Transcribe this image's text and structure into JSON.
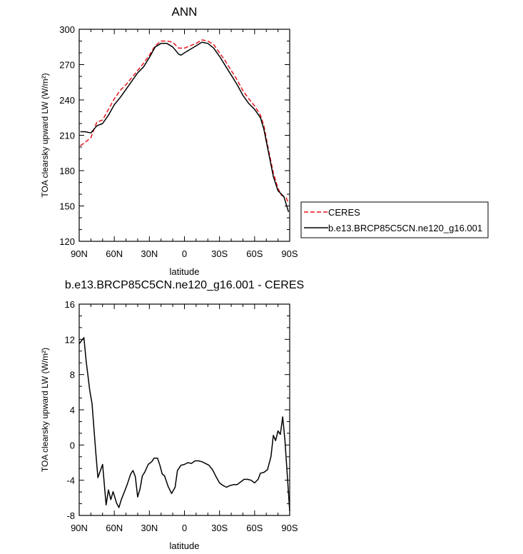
{
  "chart_data": [
    {
      "type": "line",
      "title": "ANN",
      "xlabel": "latitude",
      "ylabel": "TOA clearsky upward LW (W/m²)",
      "xlim": [
        90,
        -90
      ],
      "ylim": [
        120,
        300
      ],
      "x_ticks": [
        {
          "value": 90,
          "label": "90N"
        },
        {
          "value": 60,
          "label": "60N"
        },
        {
          "value": 30,
          "label": "30N"
        },
        {
          "value": 0,
          "label": "0"
        },
        {
          "value": -30,
          "label": "30S"
        },
        {
          "value": -60,
          "label": "60S"
        },
        {
          "value": -90,
          "label": "90S"
        }
      ],
      "y_ticks": [
        120,
        150,
        180,
        210,
        240,
        270,
        300
      ],
      "legend_position": "right",
      "series": [
        {
          "name": "CERES",
          "color": "#e8141d",
          "dash": "dashed",
          "points": [
            [
              89,
              201
            ],
            [
              85,
              204
            ],
            [
              80,
              208
            ],
            [
              75,
              221
            ],
            [
              70,
              223
            ],
            [
              65,
              232
            ],
            [
              60,
              241
            ],
            [
              55,
              248
            ],
            [
              50,
              253
            ],
            [
              45,
              259
            ],
            [
              40,
              265
            ],
            [
              35,
              271
            ],
            [
              30,
              278
            ],
            [
              25,
              286
            ],
            [
              20,
              290
            ],
            [
              15,
              290
            ],
            [
              10,
              289
            ],
            [
              5,
              284
            ],
            [
              0,
              284
            ],
            [
              -5,
              286
            ],
            [
              -10,
              288
            ],
            [
              -15,
              291
            ],
            [
              -20,
              290
            ],
            [
              -25,
              287
            ],
            [
              -30,
              280
            ],
            [
              -35,
              273
            ],
            [
              -40,
              265
            ],
            [
              -45,
              257
            ],
            [
              -50,
              248
            ],
            [
              -55,
              241
            ],
            [
              -60,
              235
            ],
            [
              -65,
              227
            ],
            [
              -68,
              218
            ],
            [
              -72,
              197
            ],
            [
              -76,
              178
            ],
            [
              -80,
              165
            ],
            [
              -83,
              159
            ],
            [
              -87,
              157
            ],
            [
              -89,
              152
            ]
          ]
        },
        {
          "name": "b.e13.BRCP85C5CN.ne120_g16.001",
          "color": "#000000",
          "dash": "solid",
          "points": [
            [
              89,
              213
            ],
            [
              85,
              213
            ],
            [
              80,
              212
            ],
            [
              75,
              218
            ],
            [
              70,
              220
            ],
            [
              65,
              227
            ],
            [
              60,
              236
            ],
            [
              55,
              242
            ],
            [
              50,
              249
            ],
            [
              45,
              256
            ],
            [
              40,
              263
            ],
            [
              35,
              268
            ],
            [
              30,
              276
            ],
            [
              25,
              285
            ],
            [
              20,
              288
            ],
            [
              15,
              288
            ],
            [
              10,
              285
            ],
            [
              5,
              279
            ],
            [
              3,
              278
            ],
            [
              0,
              280
            ],
            [
              -5,
              283
            ],
            [
              -10,
              286
            ],
            [
              -15,
              289
            ],
            [
              -20,
              288
            ],
            [
              -25,
              284
            ],
            [
              -30,
              277
            ],
            [
              -35,
              269
            ],
            [
              -40,
              261
            ],
            [
              -45,
              253
            ],
            [
              -50,
              244
            ],
            [
              -55,
              237
            ],
            [
              -60,
              232
            ],
            [
              -65,
              225
            ],
            [
              -68,
              215
            ],
            [
              -72,
              195
            ],
            [
              -76,
              175
            ],
            [
              -80,
              163
            ],
            [
              -85,
              158
            ],
            [
              -89,
              145
            ]
          ]
        }
      ]
    },
    {
      "type": "line",
      "title": "b.e13.BRCP85C5CN.ne120_g16.001 - CERES",
      "xlabel": "latitude",
      "ylabel": "TOA clearsky upward LW (W/m²)",
      "xlim": [
        90,
        -90
      ],
      "ylim": [
        -8,
        16
      ],
      "x_ticks": [
        {
          "value": 90,
          "label": "90N"
        },
        {
          "value": 60,
          "label": "60N"
        },
        {
          "value": 30,
          "label": "30N"
        },
        {
          "value": 0,
          "label": "0"
        },
        {
          "value": -30,
          "label": "30S"
        },
        {
          "value": -60,
          "label": "60S"
        },
        {
          "value": -90,
          "label": "90S"
        }
      ],
      "y_ticks": [
        -8,
        -4,
        0,
        4,
        8,
        12,
        16
      ],
      "series": [
        {
          "color": "#000000",
          "dash": "solid",
          "points": [
            [
              90,
              11.5
            ],
            [
              86,
              12.2
            ],
            [
              84,
              9.5
            ],
            [
              81,
              6.2
            ],
            [
              79,
              4.7
            ],
            [
              76,
              -0.5
            ],
            [
              74,
              -3.7
            ],
            [
              70,
              -2.2
            ],
            [
              67,
              -6.8
            ],
            [
              65,
              -5.1
            ],
            [
              63,
              -6.2
            ],
            [
              61,
              -5.3
            ],
            [
              58,
              -6.6
            ],
            [
              56,
              -7.1
            ],
            [
              54,
              -6.2
            ],
            [
              51,
              -5.2
            ],
            [
              49,
              -4.5
            ],
            [
              46,
              -3.3
            ],
            [
              44,
              -2.9
            ],
            [
              42,
              -3.6
            ],
            [
              40,
              -5.9
            ],
            [
              38,
              -5.0
            ],
            [
              36,
              -3.5
            ],
            [
              34,
              -3.1
            ],
            [
              31,
              -2.2
            ],
            [
              28,
              -1.9
            ],
            [
              26,
              -1.5
            ],
            [
              23,
              -1.5
            ],
            [
              21,
              -2.3
            ],
            [
              19,
              -3.3
            ],
            [
              17,
              -3.5
            ],
            [
              14,
              -4.7
            ],
            [
              11,
              -5.5
            ],
            [
              8,
              -4.8
            ],
            [
              6,
              -2.9
            ],
            [
              3,
              -2.3
            ],
            [
              0,
              -2.2
            ],
            [
              -3,
              -2.0
            ],
            [
              -6,
              -2.1
            ],
            [
              -9,
              -1.8
            ],
            [
              -12,
              -1.8
            ],
            [
              -15,
              -1.9
            ],
            [
              -18,
              -2.1
            ],
            [
              -21,
              -2.3
            ],
            [
              -24,
              -2.8
            ],
            [
              -27,
              -3.6
            ],
            [
              -30,
              -4.3
            ],
            [
              -33,
              -4.6
            ],
            [
              -36,
              -4.8
            ],
            [
              -39,
              -4.6
            ],
            [
              -42,
              -4.5
            ],
            [
              -45,
              -4.5
            ],
            [
              -48,
              -4.2
            ],
            [
              -51,
              -3.9
            ],
            [
              -54,
              -3.9
            ],
            [
              -57,
              -4.0
            ],
            [
              -60,
              -4.3
            ],
            [
              -63,
              -3.9
            ],
            [
              -65,
              -3.2
            ],
            [
              -68,
              -3.1
            ],
            [
              -71,
              -2.8
            ],
            [
              -74,
              -1.3
            ],
            [
              -76,
              1.1
            ],
            [
              -78,
              0.5
            ],
            [
              -80,
              1.6
            ],
            [
              -82,
              1.2
            ],
            [
              -84,
              3.2
            ],
            [
              -86,
              0.5
            ],
            [
              -88,
              -3.5
            ],
            [
              -90,
              -7.5
            ]
          ]
        }
      ]
    }
  ]
}
